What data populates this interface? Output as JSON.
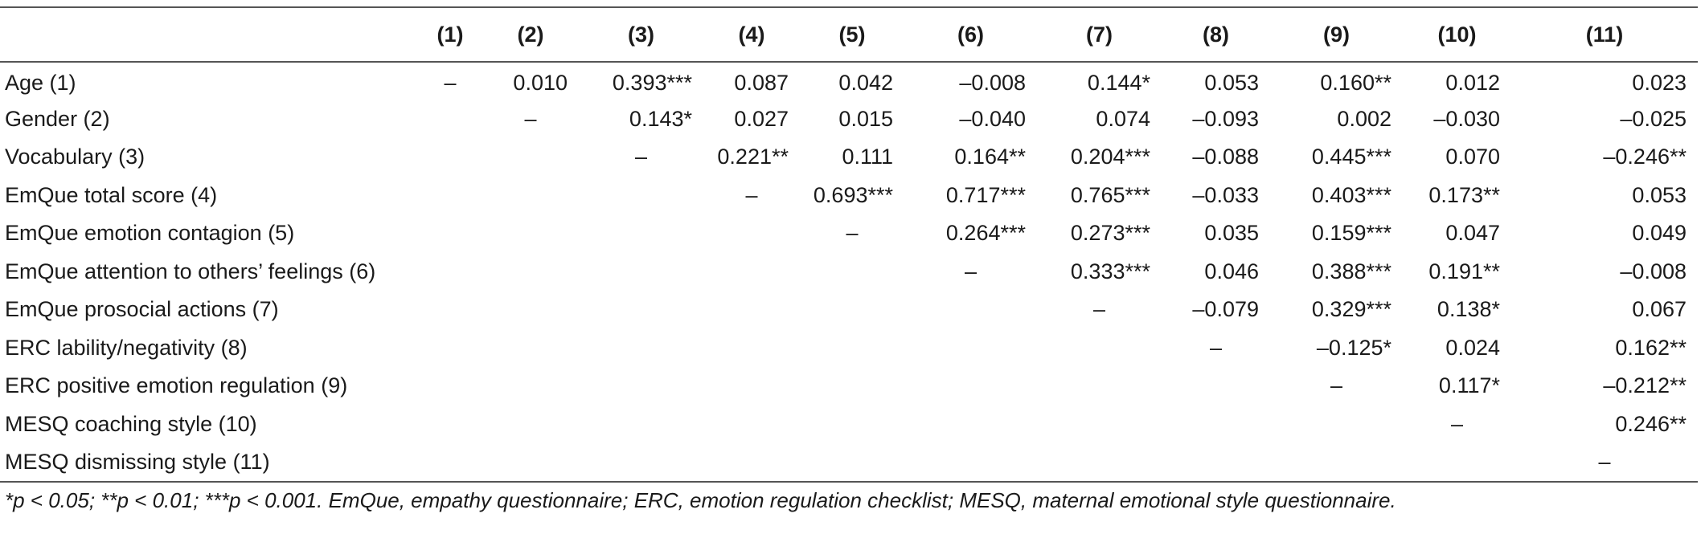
{
  "table": {
    "headers": [
      "",
      "(1)",
      "(2)",
      "(3)",
      "(4)",
      "(5)",
      "(6)",
      "(7)",
      "(8)",
      "(9)",
      "(10)",
      "(11)"
    ],
    "rows": [
      {
        "label": "Age (1)",
        "cells": [
          "–",
          "0.010",
          "0.393***",
          "0.087",
          "0.042",
          "–0.008",
          "0.144*",
          "0.053",
          "0.160**",
          "0.012",
          "0.023"
        ]
      },
      {
        "label": "Gender (2)",
        "cells": [
          "",
          "–",
          "0.143*",
          "0.027",
          "0.015",
          "–0.040",
          "0.074",
          "–0.093",
          "0.002",
          "–0.030",
          "–0.025"
        ]
      },
      {
        "label": "Vocabulary (3)",
        "cells": [
          "",
          "",
          "–",
          "0.221**",
          "0.111",
          "0.164**",
          "0.204***",
          "–0.088",
          "0.445***",
          "0.070",
          "–0.246**"
        ]
      },
      {
        "label": "EmQue total score (4)",
        "cells": [
          "",
          "",
          "",
          "–",
          "0.693***",
          "0.717***",
          "0.765***",
          "–0.033",
          "0.403***",
          "0.173**",
          "0.053"
        ]
      },
      {
        "label": "EmQue emotion contagion (5)",
        "cells": [
          "",
          "",
          "",
          "",
          "–",
          "0.264***",
          "0.273***",
          "0.035",
          "0.159***",
          "0.047",
          "0.049"
        ]
      },
      {
        "label": "EmQue attention to others’ feelings (6)",
        "cells": [
          "",
          "",
          "",
          "",
          "",
          "–",
          "0.333***",
          "0.046",
          "0.388***",
          "0.191**",
          "–0.008"
        ]
      },
      {
        "label": "EmQue prosocial actions (7)",
        "cells": [
          "",
          "",
          "",
          "",
          "",
          "",
          "–",
          "–0.079",
          "0.329***",
          "0.138*",
          "0.067"
        ]
      },
      {
        "label": "ERC lability/negativity (8)",
        "cells": [
          "",
          "",
          "",
          "",
          "",
          "",
          "",
          "–",
          "–0.125*",
          "0.024",
          "0.162**"
        ]
      },
      {
        "label": "ERC positive emotion regulation (9)",
        "cells": [
          "",
          "",
          "",
          "",
          "",
          "",
          "",
          "",
          "–",
          "0.117*",
          "–0.212**"
        ]
      },
      {
        "label": "MESQ coaching style (10)",
        "cells": [
          "",
          "",
          "",
          "",
          "",
          "",
          "",
          "",
          "",
          "–",
          "0.246**"
        ]
      },
      {
        "label": "MESQ dismissing style (11)",
        "cells": [
          "",
          "",
          "",
          "",
          "",
          "",
          "",
          "",
          "",
          "",
          "–"
        ]
      }
    ]
  },
  "footnote": "*p < 0.05; **p < 0.01; ***p < 0.001. EmQue, empathy questionnaire; ERC, emotion regulation checklist; MESQ, maternal emotional style questionnaire."
}
